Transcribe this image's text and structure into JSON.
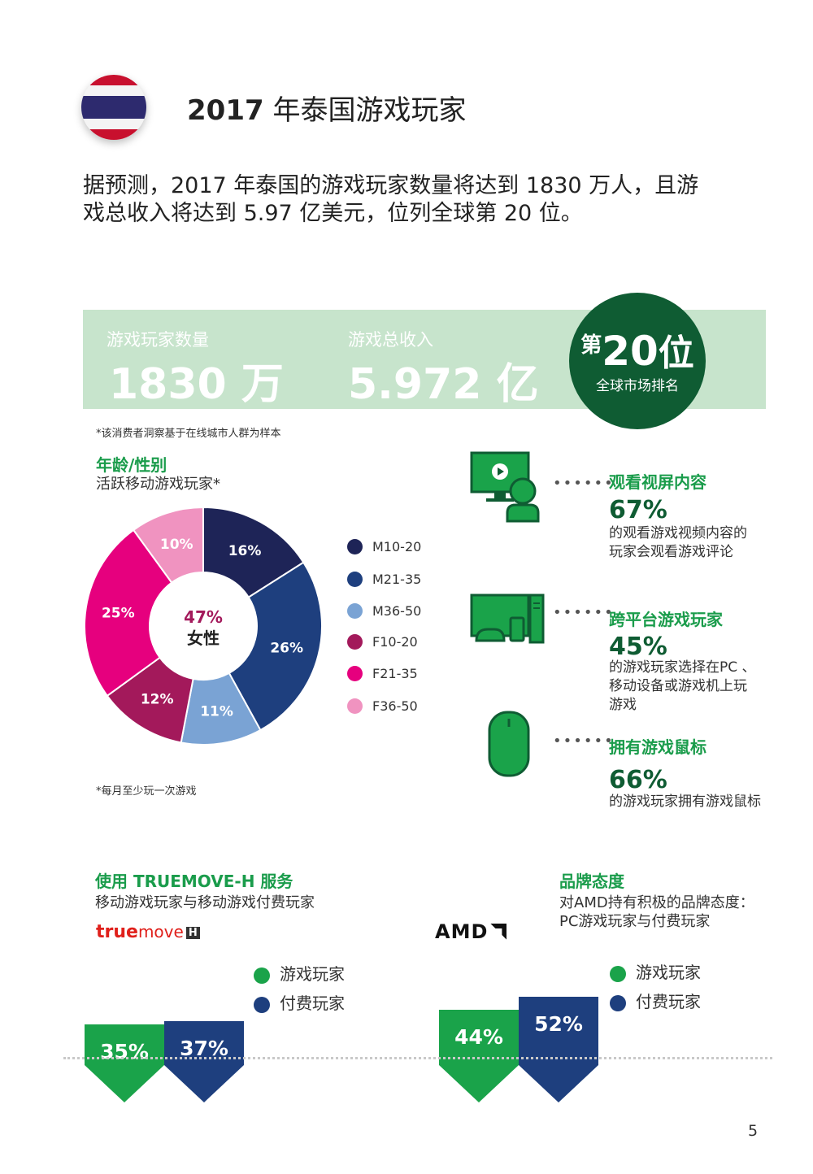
{
  "header": {
    "title_year": "2017",
    "title_rest": " 年泰国游戏玩家",
    "flag_icon": "thailand-flag-icon",
    "intro_line1": "据预测，2017 年泰国的游戏玩家数量将达到 1830 万人，且游",
    "intro_line2": "戏总收入将达到 5.97 亿美元，位列全球第 20 位。"
  },
  "stats": {
    "players_label": "游戏玩家数量",
    "players_value": "1830 万",
    "revenue_label": "游戏总收入",
    "revenue_value": "5.972 亿",
    "rank_prefix": "第",
    "rank_number": "20",
    "rank_suffix": "位",
    "rank_label": "全球市场排名",
    "footnote": "*该消费者洞察基于在线城市人群为样本"
  },
  "age_gender": {
    "title": "年龄/性别",
    "subtitle": "活跃移动游戏玩家*",
    "center_pct": "47%",
    "center_label": "女性",
    "footnote": "*每月至少玩一次游戏"
  },
  "chart_data": {
    "type": "pie",
    "variant": "donut",
    "categories": [
      "M10-20",
      "M21-35",
      "M36-50",
      "F10-20",
      "F21-35",
      "F36-50"
    ],
    "values": [
      16,
      26,
      11,
      12,
      25,
      10
    ],
    "labels": [
      "16%",
      "26%",
      "11%",
      "12%",
      "25%",
      "10%"
    ],
    "colors": [
      "#1e2457",
      "#1e3f7e",
      "#7aa3d4",
      "#a3195b",
      "#e6007e",
      "#f093c0"
    ],
    "legend_position": "right"
  },
  "features": [
    {
      "icon": "video-viewer-icon",
      "title": "观看视屏内容",
      "pct": "67%",
      "desc_lines": [
        "的观看游戏视频内容的",
        "玩家会观看游戏评论"
      ]
    },
    {
      "icon": "multi-device-icon",
      "title": "跨平台游戏玩家",
      "pct": "45%",
      "desc_lines": [
        "的游戏玩家选择在PC 、",
        "移动设备或游戏机上玩",
        "游戏"
      ]
    },
    {
      "icon": "mouse-icon",
      "title": "拥有游戏鼠标",
      "pct": "66%",
      "desc_lines": [
        "的游戏玩家拥有游戏鼠标"
      ]
    }
  ],
  "truemove": {
    "title": "使用 TRUEMOVE-H 服务",
    "subtitle": "移动游戏玩家与移动游戏付费玩家",
    "logo_text_true": "true",
    "logo_text_move": "move",
    "logo_text_h": "H",
    "legend": [
      "游戏玩家",
      "付费玩家"
    ]
  },
  "amd": {
    "title": "品牌态度",
    "subtitle_line1": "对AMD持有积极的品牌态度：",
    "subtitle_line2": "PC游戏玩家与付费玩家",
    "logo_text": "AMD",
    "legend": [
      "游戏玩家",
      "付费玩家"
    ]
  },
  "bar_charts": [
    {
      "type": "bar",
      "categories": [
        "游戏玩家",
        "付费玩家"
      ],
      "values": [
        35,
        37
      ],
      "labels": [
        "35%",
        "37%"
      ],
      "colors": [
        "#1aa34a",
        "#1e3f7e"
      ]
    },
    {
      "type": "bar",
      "categories": [
        "游戏玩家",
        "付费玩家"
      ],
      "values": [
        44,
        52
      ],
      "labels": [
        "44%",
        "52%"
      ],
      "colors": [
        "#1aa34a",
        "#1e3f7e"
      ]
    }
  ],
  "page_number": "5"
}
